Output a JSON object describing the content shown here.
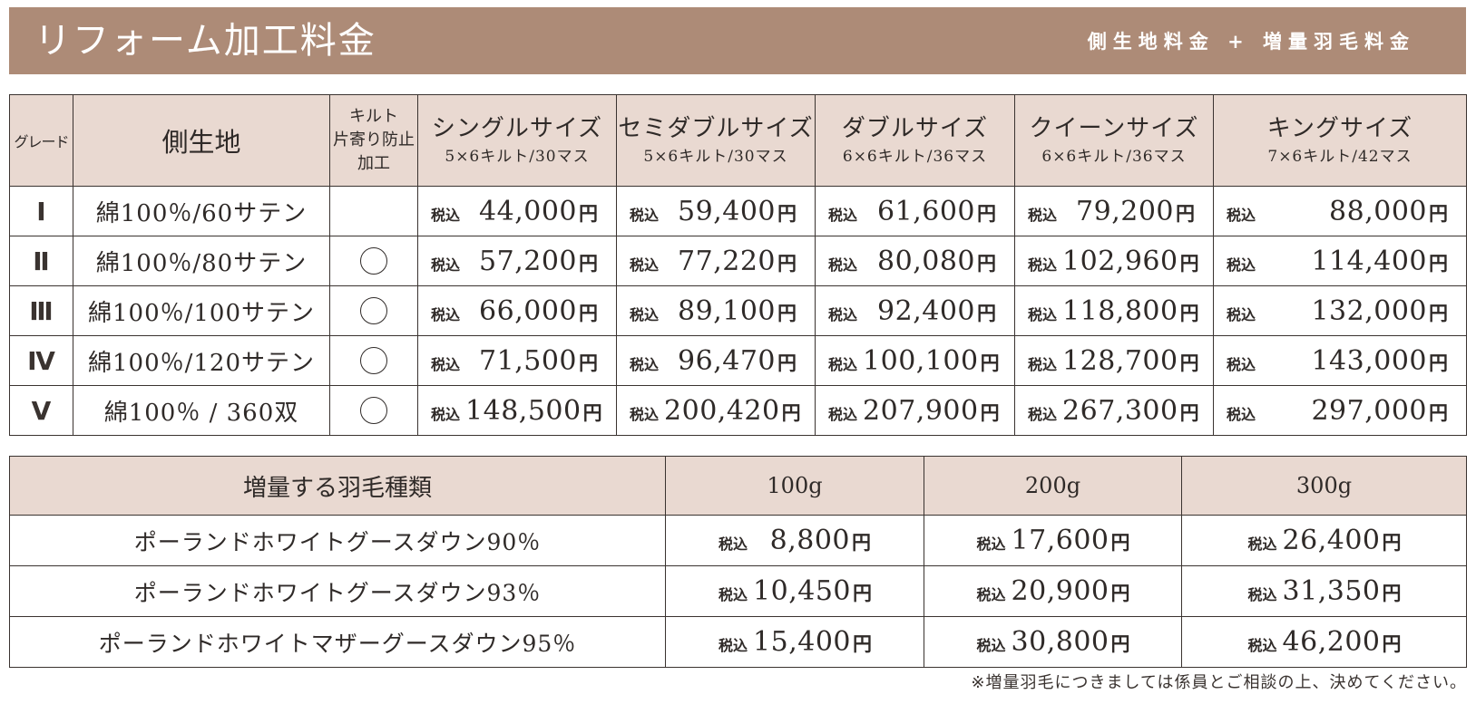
{
  "header": {
    "title": "リフォーム加工料金",
    "subtitle": "側生地料金 + 増量羽毛料金"
  },
  "price_table": {
    "headers": {
      "grade": "グレード",
      "fabric": "側生地",
      "quilt": "キルト\n片寄り防止\n加工",
      "sizes": [
        {
          "name": "シングルサイズ",
          "spec": "5×6キルト/30マス"
        },
        {
          "name": "セミダブルサイズ",
          "spec": "5×6キルト/30マス"
        },
        {
          "name": "ダブルサイズ",
          "spec": "6×6キルト/36マス"
        },
        {
          "name": "クイーンサイズ",
          "spec": "6×6キルト/36マス"
        },
        {
          "name": "キングサイズ",
          "spec": "7×6キルト/42マス"
        }
      ]
    },
    "tax_label": "税込",
    "yen_label": "円",
    "rows": [
      {
        "grade": "Ⅰ",
        "fabric": "綿100％/60サテン",
        "quilt": false,
        "prices": [
          "44,000",
          "59,400",
          "61,600",
          "79,200",
          "88,000"
        ]
      },
      {
        "grade": "Ⅱ",
        "fabric": "綿100％/80サテン",
        "quilt": true,
        "prices": [
          "57,200",
          "77,220",
          "80,080",
          "102,960",
          "114,400"
        ]
      },
      {
        "grade": "Ⅲ",
        "fabric": "綿100％/100サテン",
        "quilt": true,
        "prices": [
          "66,000",
          "89,100",
          "92,400",
          "118,800",
          "132,000"
        ]
      },
      {
        "grade": "Ⅳ",
        "fabric": "綿100％/120サテン",
        "quilt": true,
        "prices": [
          "71,500",
          "96,470",
          "100,100",
          "128,700",
          "143,000"
        ]
      },
      {
        "grade": "Ⅴ",
        "fabric": "綿100％ / 360双",
        "quilt": true,
        "prices": [
          "148,500",
          "200,420",
          "207,900",
          "267,300",
          "297,000"
        ]
      }
    ]
  },
  "down_table": {
    "headers": {
      "type": "増量する羽毛種類",
      "grams": [
        "100g",
        "200g",
        "300g"
      ]
    },
    "rows": [
      {
        "name": "ポーランドホワイトグースダウン90％",
        "prices": [
          "8,800",
          "17,600",
          "26,400"
        ]
      },
      {
        "name": "ポーランドホワイトグースダウン93％",
        "prices": [
          "10,450",
          "20,900",
          "31,350"
        ]
      },
      {
        "name": "ポーランドホワイトマザーグースダウン95％",
        "prices": [
          "15,400",
          "30,800",
          "46,200"
        ]
      }
    ]
  },
  "footnote": "※増量羽毛につきましては係員とご相談の上、決めてください。",
  "colors": {
    "banner": "#ad8b77",
    "header_cell": "#e9d9d1",
    "border": "#3a3330"
  }
}
